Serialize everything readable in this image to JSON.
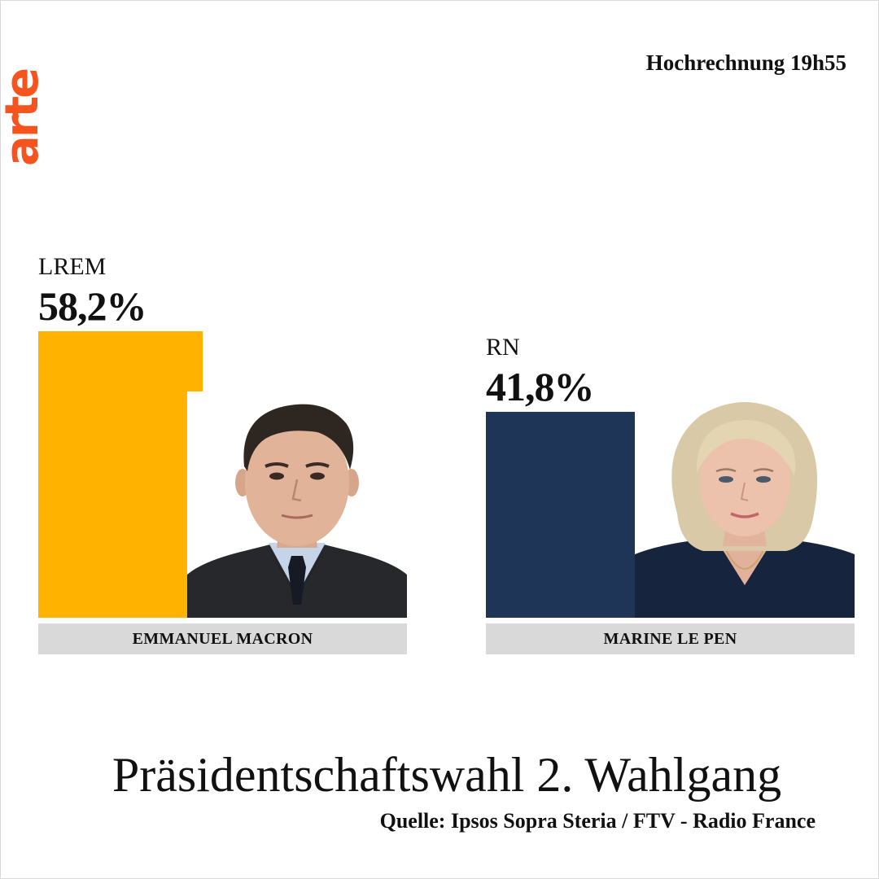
{
  "brand": {
    "logo_text": "arte",
    "logo_color": "#f5541f"
  },
  "header": {
    "timestamp": "Hochrechnung 19h55"
  },
  "footer": {
    "title": "Präsidentschaftswahl 2. Wahlgang",
    "source": "Quelle: Ipsos Sopra Steria / FTV - Radio France"
  },
  "chart_data": {
    "type": "bar",
    "title": "Präsidentschaftswahl 2. Wahlgang",
    "categories": [
      "EMMANUEL MACRON",
      "MARINE LE PEN"
    ],
    "values": [
      58.2,
      41.8
    ],
    "parties": [
      "LREM",
      "RN"
    ],
    "value_labels": [
      "58,2%",
      "41,8%"
    ],
    "colors": [
      "#ffb300",
      "#1f3557"
    ],
    "unit": "%",
    "ylim": [
      0,
      58.2
    ],
    "grid": false,
    "legend": "none"
  }
}
